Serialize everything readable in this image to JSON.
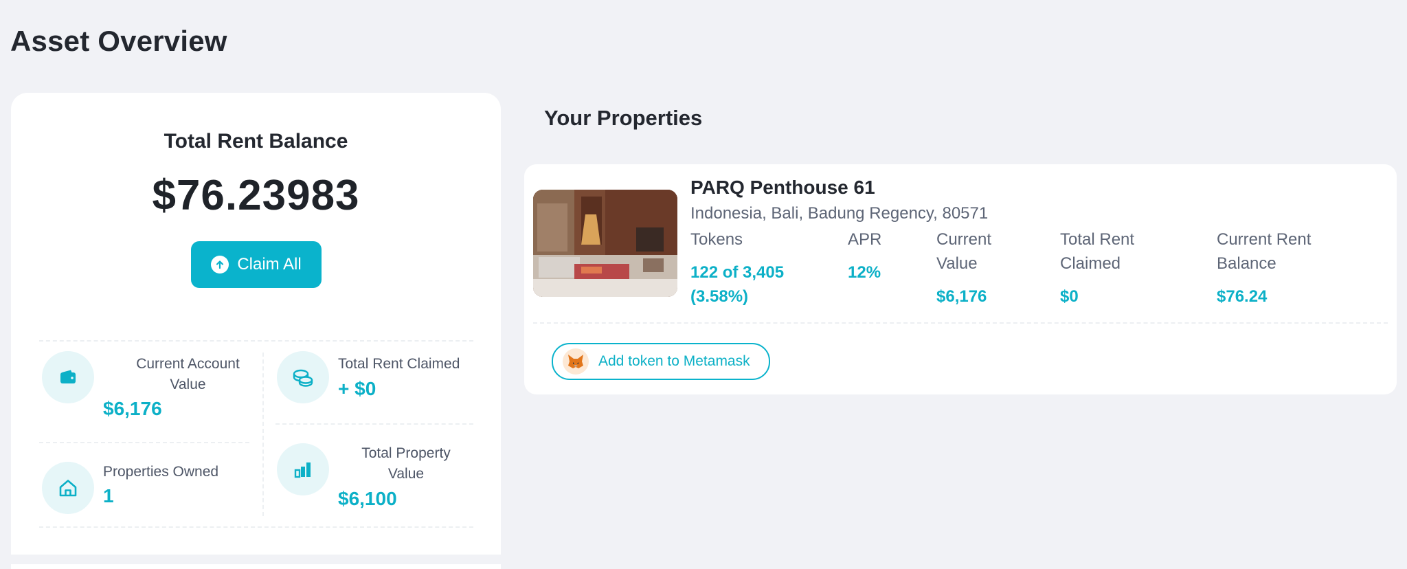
{
  "page": {
    "title": "Asset Overview"
  },
  "balance_card": {
    "title": "Total Rent Balance",
    "amount": "$76.23983",
    "claim_label": "Claim All",
    "stats": {
      "current_account": {
        "label_line1": "Current Account",
        "label_line2": "Value",
        "value": "$6,176",
        "icon": "wallet-icon"
      },
      "total_rent_claimed": {
        "label": "Total Rent Claimed",
        "value": "+ $0",
        "icon": "coins-icon"
      },
      "properties_owned": {
        "label": "Properties Owned",
        "value": "1",
        "icon": "home-icon"
      },
      "total_property_value": {
        "label_line1": "Total Property",
        "label_line2": "Value",
        "value": "$6,100",
        "icon": "bar-chart-icon"
      }
    }
  },
  "properties": {
    "title": "Your Properties",
    "items": [
      {
        "name": "PARQ Penthouse 61",
        "address": "Indonesia, Bali, Badung Regency, 80571",
        "columns": {
          "tokens": {
            "label": "Tokens",
            "value_line1": "122 of 3,405",
            "value_line2": "(3.58%)"
          },
          "apr": {
            "label": "APR",
            "value": "12%"
          },
          "current_value": {
            "label_line1": "Current",
            "label_line2": "Value",
            "value": "$6,176"
          },
          "total_rent_claimed": {
            "label_line1": "Total Rent",
            "label_line2": "Claimed",
            "value": "$0"
          },
          "current_rent_balance": {
            "label_line1": "Current Rent",
            "label_line2": "Balance",
            "value": "$76.24"
          }
        },
        "metamask_label": "Add token to Metamask"
      }
    ]
  },
  "colors": {
    "accent": "#0ab3cc",
    "background": "#f1f2f6",
    "card": "#ffffff",
    "icon_circle": "#e6f6f8"
  }
}
